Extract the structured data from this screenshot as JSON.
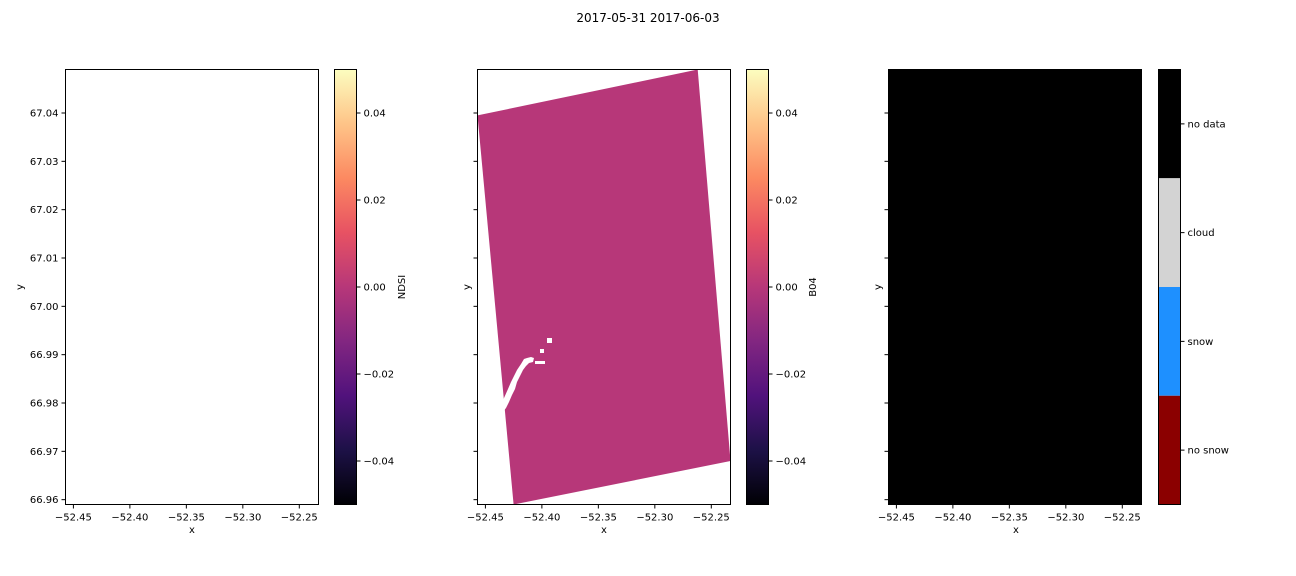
{
  "figure": {
    "title": "2017-05-31 2017-06-03"
  },
  "chart_data": [
    {
      "type": "heatmap",
      "panel": "left",
      "content": "empty (no data rendered)",
      "xlabel": "x",
      "ylabel": "y",
      "xlim": [
        -52.457,
        -52.233
      ],
      "ylim": [
        66.959,
        67.049
      ],
      "xticks": [
        -52.45,
        -52.4,
        -52.35,
        -52.3,
        -52.25
      ],
      "xtick_labels": [
        "−52.45",
        "−52.40",
        "−52.35",
        "−52.30",
        "−52.25"
      ],
      "yticks": [
        66.96,
        66.97,
        66.98,
        66.99,
        67.0,
        67.01,
        67.02,
        67.03,
        67.04
      ],
      "ytick_labels": [
        "66.96",
        "66.97",
        "66.98",
        "66.99",
        "67.00",
        "67.01",
        "67.02",
        "67.03",
        "67.04"
      ],
      "colorbar": {
        "label": "NDSI",
        "colormap": "magma",
        "range": [
          -0.05,
          0.05
        ],
        "ticks": [
          -0.04,
          -0.02,
          0.0,
          0.02,
          0.04
        ],
        "tick_labels": [
          "−0.04",
          "−0.02",
          "0.00",
          "0.02",
          "0.04"
        ]
      }
    },
    {
      "type": "heatmap",
      "panel": "middle",
      "content": "rotated satellite swath with uniform value 0.00; small no-data gaps near lower-left",
      "fill_color": "#b73779",
      "fill_value": 0.0,
      "swath_corners": [
        [
          -52.457,
          67.0395
        ],
        [
          -52.262,
          67.049
        ],
        [
          -52.233,
          66.968
        ],
        [
          -52.425,
          66.959
        ]
      ],
      "xlabel": "x",
      "ylabel": "y",
      "xlim": [
        -52.457,
        -52.233
      ],
      "ylim": [
        66.959,
        67.049
      ],
      "xticks": [
        -52.45,
        -52.4,
        -52.35,
        -52.3,
        -52.25
      ],
      "xtick_labels": [
        "−52.45",
        "−52.40",
        "−52.35",
        "−52.30",
        "−52.25"
      ],
      "yticks": [
        66.96,
        66.97,
        66.98,
        66.99,
        67.0,
        67.01,
        67.02,
        67.03,
        67.04
      ],
      "colorbar": {
        "label": "B04",
        "colormap": "magma",
        "range": [
          -0.05,
          0.05
        ],
        "ticks": [
          -0.04,
          -0.02,
          0.0,
          0.02,
          0.04
        ],
        "tick_labels": [
          "−0.04",
          "−0.02",
          "0.00",
          "0.02",
          "0.04"
        ]
      }
    },
    {
      "type": "heatmap",
      "panel": "right",
      "content": "entire area classified as no data",
      "fill_color": "#000000",
      "xlabel": "x",
      "ylabel": "y",
      "xlim": [
        -52.457,
        -52.233
      ],
      "ylim": [
        66.959,
        67.049
      ],
      "xticks": [
        -52.45,
        -52.4,
        -52.35,
        -52.3,
        -52.25
      ],
      "xtick_labels": [
        "−52.45",
        "−52.40",
        "−52.35",
        "−52.30",
        "−52.25"
      ],
      "yticks": [
        66.96,
        66.97,
        66.98,
        66.99,
        67.0,
        67.01,
        67.02,
        67.03,
        67.04
      ],
      "colorbar": {
        "type": "categorical",
        "categories": [
          {
            "label": "no data",
            "color": "#000000"
          },
          {
            "label": "cloud",
            "color": "#d3d3d3"
          },
          {
            "label": "snow",
            "color": "#1e90ff"
          },
          {
            "label": "no snow",
            "color": "#8b0000"
          }
        ]
      }
    }
  ]
}
